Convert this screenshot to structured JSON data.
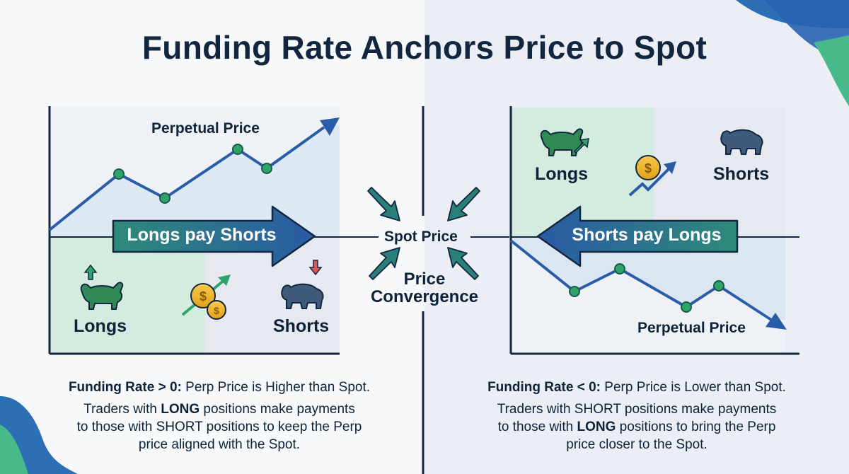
{
  "title": "Funding Rate Anchors Price to Spot",
  "center": {
    "spot_label": "Spot Price",
    "convergence_label_line1": "Price",
    "convergence_label_line2": "Convergence"
  },
  "left_panel": {
    "perp_label": "Perpetual Price",
    "arrow_label": "Longs pay Shorts",
    "longs_label": "Longs",
    "shorts_label": "Shorts",
    "caption": {
      "heading_bold": "Funding Rate > 0:",
      "heading_rest": " Perp Price is Higher than Spot.",
      "line1_pre": "Traders with ",
      "line1_bold": "LONG",
      "line1_post": " positions make payments",
      "line2": "to those with SHORT positions to keep the Perp",
      "line3": "price aligned with the Spot."
    }
  },
  "right_panel": {
    "perp_label": "Perpetual Price",
    "arrow_label": "Shorts pay Longs",
    "longs_label": "Longs",
    "shorts_label": "Shorts",
    "caption": {
      "heading_bold": "Funding Rate < 0:",
      "heading_rest": " Perp Price is Lower than Spot.",
      "line1": "Traders with SHORT positions make payments",
      "line2_pre": "to those with ",
      "line2_bold": "LONG",
      "line2_post": " positions to bring the Perp",
      "line3": "price closer to the Spot."
    }
  },
  "colors": {
    "navy": "#13263f",
    "line_blue": "#2b5ca8",
    "marker_green": "#2fa36b",
    "long_zone": "#d4ecdf",
    "short_zone": "#e6e9ef",
    "arrow_green": "#2e8a78",
    "arrow_blue": "#2a5aa5"
  },
  "icons": [
    "bull-icon",
    "bear-icon",
    "coin-icon",
    "up-arrow-icon",
    "down-arrow-icon"
  ]
}
